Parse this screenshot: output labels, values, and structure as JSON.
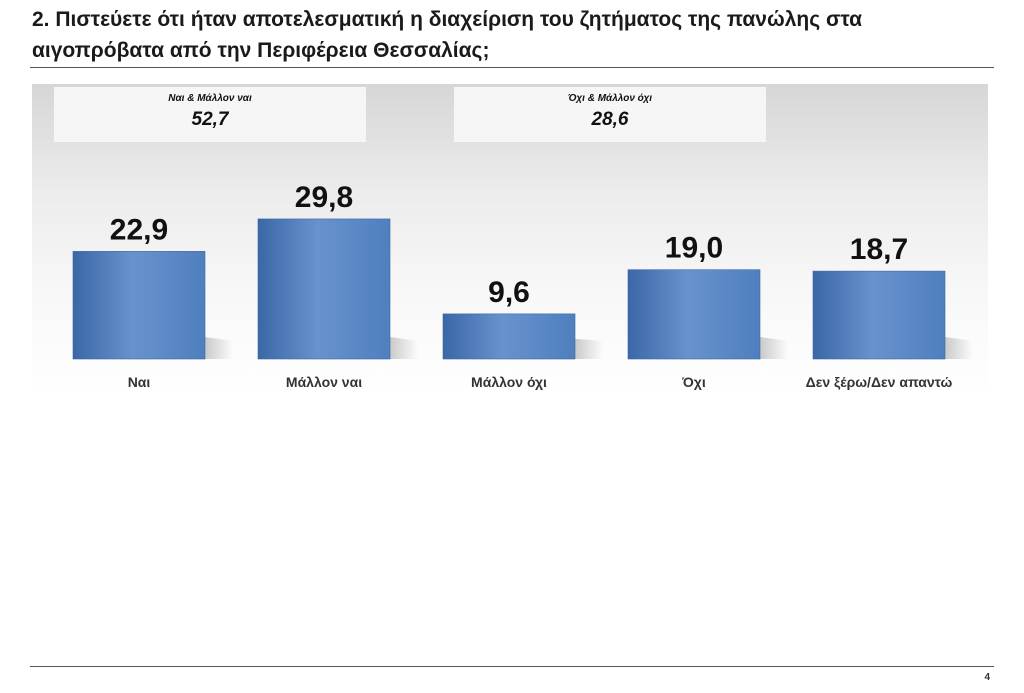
{
  "question": {
    "line1": "2. Πιστεύετε ότι ήταν αποτελεσματική η  διαχείριση του ζητήματος της πανώλης στα",
    "line2": "αιγοπρόβατα από την Περιφέρεια Θεσσαλίας;"
  },
  "summary": {
    "yes_label": "Ναι & Μάλλον ναι",
    "yes_value": "52,7",
    "no_label": "Όχι & Μάλλον όχι",
    "no_value": "28,6"
  },
  "colors": {
    "bar": "#4f7fbe",
    "bar_dark": "#3b67a6",
    "bar_light": "#6892cd",
    "shadow": "#b9b9b9"
  },
  "chart_data": {
    "type": "bar",
    "title": "2. Πιστεύετε ότι ήταν αποτελεσματική η  διαχείριση του ζητήματος της πανώλης στα αιγοπρόβατα από την Περιφέρεια Θεσσαλίας;",
    "categories": [
      "Ναι",
      "Μάλλον ναι",
      "Μάλλον όχι",
      "Όχι",
      "Δεν ξέρω/Δεν απαντώ"
    ],
    "values": [
      22.9,
      29.8,
      9.6,
      19.0,
      18.7
    ],
    "value_labels": [
      "22,9",
      "29,8",
      "9,6",
      "19,0",
      "18,7"
    ],
    "xlabel": "",
    "ylabel": "",
    "ylim": [
      0,
      40
    ],
    "grid": false,
    "legend": "none"
  },
  "footer": {
    "page_number": "4"
  }
}
